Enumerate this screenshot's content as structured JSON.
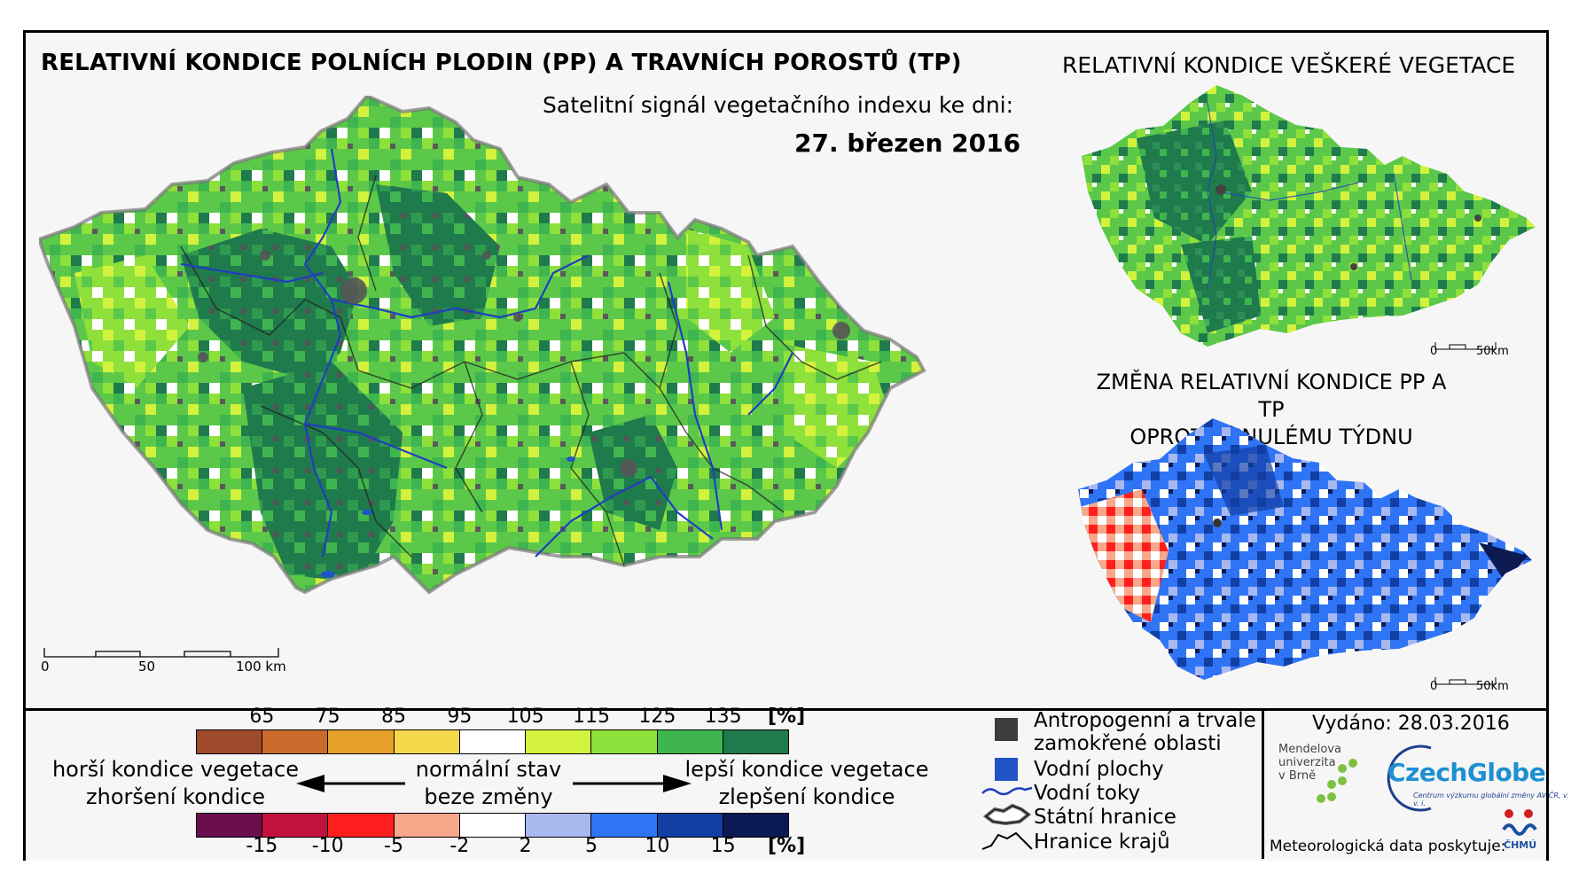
{
  "header": {
    "title_main": "RELATIVNÍ KONDICE POLNÍCH PLODIN (PP) A TRAVNÍCH POROSTŮ (TP)",
    "subtitle": "Satelitní signál vegetačního indexu ke dni:",
    "date": "27. březen 2016"
  },
  "inset_vegetation": {
    "title": "RELATIVNÍ KONDICE VEŠKERÉ VEGETACE",
    "scale_zero": "0",
    "scale_end": "50km"
  },
  "inset_change": {
    "title_line1": "ZMĚNA RELATIVNÍ KONDICE PP A TP",
    "title_line2": "OPROTI MINULÉMU TÝDNU",
    "scale_zero": "0",
    "scale_end": "50km"
  },
  "main_map": {
    "scale_labels": [
      "0",
      "50",
      "100 km"
    ]
  },
  "legend_condition": {
    "ticks": [
      "65",
      "75",
      "85",
      "95",
      "105",
      "115",
      "125",
      "135"
    ],
    "unit": "[%]",
    "colors": [
      "#9e4a2c",
      "#c96a2a",
      "#e6a12a",
      "#f7d84a",
      "#ffffff",
      "#d3f23d",
      "#8ee03b",
      "#3fb54f",
      "#1f7a4c"
    ]
  },
  "legend_change": {
    "ticks": [
      "-15",
      "-10",
      "-5",
      "-2",
      "2",
      "5",
      "10",
      "15"
    ],
    "unit": "[%]",
    "colors": [
      "#6a0e4e",
      "#c0123c",
      "#ff1e1e",
      "#f8a78b",
      "#ffffff",
      "#a9b9f0",
      "#2f74f5",
      "#123fa4",
      "#0b1a52"
    ]
  },
  "legend_labels": {
    "worse_line1": "horší kondice vegetace",
    "worse_line2": "zhoršení kondice",
    "normal_line1": "normální stav",
    "normal_line2": "beze změny",
    "better_line1": "lepší kondice vegetace",
    "better_line2": "zlepšení kondice"
  },
  "map_legend": {
    "anthropogenic_line1": "Antropogenní a trvale",
    "anthropogenic_line2": "zamokřené oblasti",
    "water_bodies": "Vodní plochy",
    "water_courses": "Vodní toky",
    "state_border": "Státní hranice",
    "region_border": "Hranice krajů",
    "colors": {
      "anthropogenic": "#3c3c3c",
      "water": "#1f54c6",
      "river": "#1f3fbf"
    }
  },
  "credits": {
    "issued": "Vydáno: 28.03.2016",
    "mendel_line1": "Mendelova",
    "mendel_line2": "univerzita",
    "mendel_line3": "v Brně",
    "czechglobe": "CzechGlobe",
    "czechglobe_sub": "Centrum výzkumu globální změny AV ČR, v. v. i.",
    "meteo": "Meteorologická data poskytuje:",
    "chmu": "ČHMÚ"
  }
}
